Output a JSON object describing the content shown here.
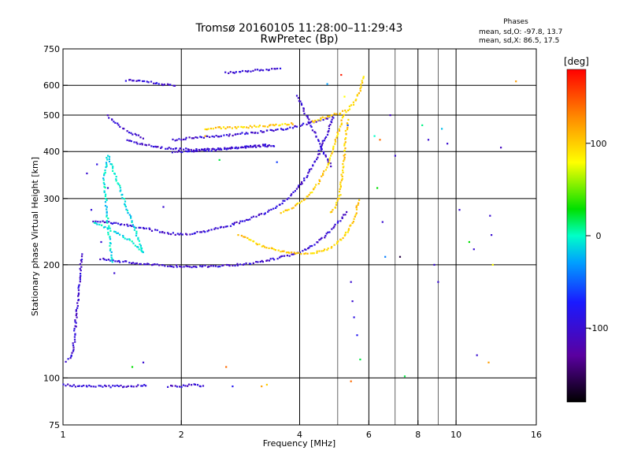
{
  "chart_data": {
    "type": "scatter",
    "title": "Tromsø 20160105 11:28:00–11:29:43",
    "subtitle": "RwPretec (Bp)",
    "xlabel": "Frequency [MHz]",
    "ylabel": "Stationary phase Virtual Height [km]",
    "x_scale": "log",
    "y_scale": "log",
    "xlim": [
      1,
      16
    ],
    "ylim": [
      75,
      750
    ],
    "x_ticks": [
      {
        "value": 1,
        "label": "1"
      },
      {
        "value": 2,
        "label": "2"
      },
      {
        "value": 4,
        "label": "4"
      },
      {
        "value": 6,
        "label": "6"
      },
      {
        "value": 8,
        "label": "8"
      },
      {
        "value": 10,
        "label": "10"
      },
      {
        "value": 16,
        "label": "16"
      }
    ],
    "x_gridlines": [
      2,
      4,
      6,
      8,
      10
    ],
    "x_minor_lines": [
      5,
      7,
      9
    ],
    "y_ticks": [
      {
        "value": 75,
        "label": "75"
      },
      {
        "value": 100,
        "label": "100"
      },
      {
        "value": 200,
        "label": "200"
      },
      {
        "value": 300,
        "label": "300"
      },
      {
        "value": 400,
        "label": "400"
      },
      {
        "value": 500,
        "label": "500"
      },
      {
        "value": 600,
        "label": "600"
      },
      {
        "value": 750,
        "label": "750"
      }
    ],
    "y_gridlines": [
      100,
      200,
      300,
      400,
      500,
      600
    ],
    "grid": true,
    "stats": {
      "heading": "Phases",
      "line_o": "mean, sd,O:  -97.8, 13.7",
      "line_x": "mean, sd,X:   86.5, 17.5"
    },
    "colorbar": {
      "label": "[deg]",
      "range": [
        -180,
        180
      ],
      "ticks": [
        {
          "value": 100,
          "label": "100"
        },
        {
          "value": 0,
          "label": "0"
        },
        {
          "value": -100,
          "label": "-100"
        }
      ]
    },
    "traces": [
      {
        "phase": -100,
        "points": [
          [
            1.2,
            262
          ],
          [
            1.35,
            258
          ],
          [
            1.5,
            253
          ],
          [
            1.65,
            249
          ],
          [
            1.8,
            244
          ],
          [
            1.95,
            241
          ],
          [
            2.1,
            242
          ],
          [
            2.3,
            246
          ],
          [
            2.6,
            253
          ],
          [
            2.9,
            262
          ],
          [
            3.2,
            272
          ],
          [
            3.5,
            286
          ],
          [
            3.75,
            302
          ],
          [
            3.95,
            320
          ],
          [
            4.15,
            342
          ],
          [
            4.3,
            365
          ],
          [
            4.45,
            392
          ],
          [
            4.6,
            425
          ],
          [
            4.75,
            460
          ],
          [
            4.9,
            500
          ]
        ]
      },
      {
        "phase": -100,
        "points": [
          [
            1.25,
            208
          ],
          [
            1.4,
            204
          ],
          [
            1.6,
            201
          ],
          [
            1.8,
            199
          ],
          [
            2.0,
            198
          ],
          [
            2.3,
            198
          ],
          [
            2.6,
            199
          ],
          [
            2.9,
            201
          ],
          [
            3.2,
            204
          ],
          [
            3.5,
            208
          ],
          [
            3.85,
            213
          ],
          [
            4.15,
            220
          ],
          [
            4.45,
            230
          ],
          [
            4.7,
            241
          ],
          [
            4.95,
            255
          ],
          [
            5.15,
            267
          ],
          [
            5.3,
            280
          ]
        ]
      },
      {
        "phase": -100,
        "points": [
          [
            1.45,
            430
          ],
          [
            1.6,
            418
          ],
          [
            1.75,
            410
          ],
          [
            1.95,
            406
          ],
          [
            2.2,
            405
          ],
          [
            2.5,
            406
          ],
          [
            2.8,
            410
          ],
          [
            3.1,
            414
          ],
          [
            3.4,
            418
          ]
        ]
      },
      {
        "phase": -100,
        "points": [
          [
            1.9,
            400
          ],
          [
            2.2,
            402
          ],
          [
            2.5,
            405
          ],
          [
            2.8,
            410
          ],
          [
            3.1,
            413
          ],
          [
            3.5,
            415
          ]
        ]
      },
      {
        "phase": -100,
        "points": [
          [
            1.9,
            430
          ],
          [
            2.2,
            436
          ],
          [
            2.5,
            440
          ],
          [
            2.8,
            445
          ],
          [
            3.1,
            450
          ],
          [
            3.4,
            455
          ],
          [
            3.7,
            460
          ],
          [
            4.0,
            470
          ],
          [
            4.3,
            478
          ],
          [
            4.6,
            487
          ],
          [
            4.9,
            495
          ]
        ]
      },
      {
        "phase": -100,
        "points": [
          [
            1.3,
            498
          ],
          [
            1.35,
            480
          ],
          [
            1.4,
            466
          ],
          [
            1.45,
            455
          ],
          [
            1.5,
            446
          ],
          [
            1.56,
            440
          ],
          [
            1.62,
            433
          ]
        ]
      },
      {
        "phase": -100,
        "points": [
          [
            1.45,
            620
          ],
          [
            1.55,
            615
          ],
          [
            1.65,
            612
          ],
          [
            1.8,
            604
          ],
          [
            1.95,
            600
          ]
        ]
      },
      {
        "phase": -100,
        "points": [
          [
            2.6,
            648
          ],
          [
            2.8,
            652
          ],
          [
            3.0,
            656
          ],
          [
            3.2,
            660
          ],
          [
            3.4,
            663
          ],
          [
            3.6,
            666
          ]
        ]
      },
      {
        "phase": -100,
        "points": [
          [
            1.0,
            96
          ],
          [
            1.1,
            95
          ],
          [
            1.2,
            95
          ],
          [
            1.35,
            95
          ],
          [
            1.5,
            95
          ],
          [
            1.65,
            96
          ]
        ]
      },
      {
        "phase": -100,
        "points": [
          [
            1.85,
            95
          ],
          [
            2.0,
            95
          ],
          [
            2.15,
            96
          ],
          [
            2.3,
            95
          ]
        ]
      },
      {
        "phase": -100,
        "points": [
          [
            1.02,
            111
          ],
          [
            1.04,
            113
          ],
          [
            1.06,
            118
          ],
          [
            1.07,
            130
          ],
          [
            1.08,
            145
          ],
          [
            1.09,
            160
          ],
          [
            1.1,
            180
          ],
          [
            1.11,
            200
          ],
          [
            1.12,
            215
          ]
        ]
      },
      {
        "phase": -100,
        "points": [
          [
            3.95,
            560
          ],
          [
            4.05,
            530
          ],
          [
            4.15,
            500
          ],
          [
            4.25,
            475
          ],
          [
            4.35,
            452
          ],
          [
            4.45,
            430
          ],
          [
            4.55,
            410
          ],
          [
            4.65,
            392
          ],
          [
            4.75,
            375
          ],
          [
            4.85,
            362
          ]
        ]
      },
      {
        "phase": 100,
        "points": [
          [
            2.8,
            240
          ],
          [
            3.0,
            232
          ],
          [
            3.2,
            225
          ],
          [
            3.45,
            219
          ],
          [
            3.7,
            216
          ],
          [
            3.95,
            214
          ],
          [
            4.2,
            214
          ],
          [
            4.45,
            216
          ],
          [
            4.7,
            220
          ],
          [
            4.95,
            227
          ],
          [
            5.15,
            236
          ],
          [
            5.35,
            250
          ],
          [
            5.5,
            265
          ],
          [
            5.6,
            283
          ],
          [
            5.65,
            300
          ]
        ]
      },
      {
        "phase": 100,
        "points": [
          [
            3.6,
            275
          ],
          [
            3.85,
            285
          ],
          [
            4.05,
            295
          ],
          [
            4.25,
            310
          ],
          [
            4.45,
            330
          ],
          [
            4.6,
            350
          ],
          [
            4.75,
            375
          ],
          [
            4.85,
            400
          ],
          [
            4.95,
            430
          ],
          [
            5.05,
            460
          ],
          [
            5.15,
            490
          ],
          [
            5.25,
            515
          ]
        ]
      },
      {
        "phase": 100,
        "points": [
          [
            4.8,
            275
          ],
          [
            4.95,
            285
          ],
          [
            5.05,
            305
          ],
          [
            5.12,
            340
          ],
          [
            5.18,
            380
          ],
          [
            5.22,
            420
          ],
          [
            5.26,
            460
          ],
          [
            5.3,
            490
          ]
        ]
      },
      {
        "phase": 100,
        "points": [
          [
            4.3,
            480
          ],
          [
            4.5,
            487
          ],
          [
            4.7,
            495
          ],
          [
            4.9,
            502
          ],
          [
            5.1,
            508
          ],
          [
            5.3,
            515
          ],
          [
            5.5,
            540
          ],
          [
            5.6,
            560
          ],
          [
            5.7,
            580
          ],
          [
            5.75,
            610
          ],
          [
            5.8,
            640
          ]
        ]
      },
      {
        "phase": 100,
        "points": [
          [
            2.3,
            460
          ],
          [
            2.5,
            462
          ],
          [
            2.7,
            463
          ],
          [
            2.9,
            465
          ],
          [
            3.1,
            466
          ],
          [
            3.3,
            468
          ],
          [
            3.5,
            470
          ],
          [
            3.7,
            473
          ],
          [
            3.9,
            476
          ]
        ]
      },
      {
        "phase": -10,
        "points": [
          [
            1.2,
            260
          ],
          [
            1.3,
            250
          ],
          [
            1.4,
            240
          ],
          [
            1.5,
            230
          ],
          [
            1.55,
            222
          ],
          [
            1.6,
            215
          ],
          [
            1.3,
            390
          ],
          [
            1.27,
            340
          ],
          [
            1.33,
            200
          ]
        ]
      }
    ],
    "scatter_points": [
      {
        "x": 1.15,
        "y": 350,
        "phase": -100
      },
      {
        "x": 1.22,
        "y": 370,
        "phase": -90
      },
      {
        "x": 1.3,
        "y": 320,
        "phase": -100
      },
      {
        "x": 1.18,
        "y": 280,
        "phase": -95
      },
      {
        "x": 1.25,
        "y": 230,
        "phase": -100
      },
      {
        "x": 1.35,
        "y": 190,
        "phase": -100
      },
      {
        "x": 1.6,
        "y": 110,
        "phase": -100
      },
      {
        "x": 1.5,
        "y": 107,
        "phase": 30
      },
      {
        "x": 1.8,
        "y": 285,
        "phase": -100
      },
      {
        "x": 2.6,
        "y": 107,
        "phase": 140
      },
      {
        "x": 2.7,
        "y": 95,
        "phase": -80
      },
      {
        "x": 3.2,
        "y": 95,
        "phase": 120
      },
      {
        "x": 3.3,
        "y": 96,
        "phase": 100
      },
      {
        "x": 3.5,
        "y": 375,
        "phase": -60
      },
      {
        "x": 2.5,
        "y": 380,
        "phase": 20
      },
      {
        "x": 2.3,
        "y": 440,
        "phase": 110
      },
      {
        "x": 5.1,
        "y": 640,
        "phase": 170
      },
      {
        "x": 4.7,
        "y": 605,
        "phase": -30
      },
      {
        "x": 5.2,
        "y": 560,
        "phase": 80
      },
      {
        "x": 5.3,
        "y": 470,
        "phase": -60
      },
      {
        "x": 5.4,
        "y": 180,
        "phase": -100
      },
      {
        "x": 5.45,
        "y": 160,
        "phase": -100
      },
      {
        "x": 5.5,
        "y": 145,
        "phase": -90
      },
      {
        "x": 5.6,
        "y": 130,
        "phase": -80
      },
      {
        "x": 5.4,
        "y": 98,
        "phase": 140
      },
      {
        "x": 5.7,
        "y": 112,
        "phase": 20
      },
      {
        "x": 6.2,
        "y": 440,
        "phase": 0
      },
      {
        "x": 6.3,
        "y": 320,
        "phase": 30
      },
      {
        "x": 6.4,
        "y": 430,
        "phase": 140
      },
      {
        "x": 6.5,
        "y": 260,
        "phase": -100
      },
      {
        "x": 6.6,
        "y": 210,
        "phase": -40
      },
      {
        "x": 6.8,
        "y": 500,
        "phase": -110
      },
      {
        "x": 7.0,
        "y": 390,
        "phase": -100
      },
      {
        "x": 7.2,
        "y": 210,
        "phase": -160
      },
      {
        "x": 7.4,
        "y": 101,
        "phase": 20
      },
      {
        "x": 8.2,
        "y": 470,
        "phase": 10
      },
      {
        "x": 8.5,
        "y": 430,
        "phase": -100
      },
      {
        "x": 8.8,
        "y": 200,
        "phase": -100
      },
      {
        "x": 9.0,
        "y": 180,
        "phase": -100
      },
      {
        "x": 9.2,
        "y": 460,
        "phase": -20
      },
      {
        "x": 9.5,
        "y": 420,
        "phase": -100
      },
      {
        "x": 10.2,
        "y": 280,
        "phase": -100
      },
      {
        "x": 10.8,
        "y": 230,
        "phase": 30
      },
      {
        "x": 11.1,
        "y": 220,
        "phase": -100
      },
      {
        "x": 11.3,
        "y": 115,
        "phase": -100
      },
      {
        "x": 12.1,
        "y": 110,
        "phase": 120
      },
      {
        "x": 12.2,
        "y": 270,
        "phase": -100
      },
      {
        "x": 12.3,
        "y": 240,
        "phase": -100
      },
      {
        "x": 12.4,
        "y": 200,
        "phase": 80
      },
      {
        "x": 13.0,
        "y": 410,
        "phase": -110
      },
      {
        "x": 14.2,
        "y": 615,
        "phase": 120
      }
    ]
  }
}
